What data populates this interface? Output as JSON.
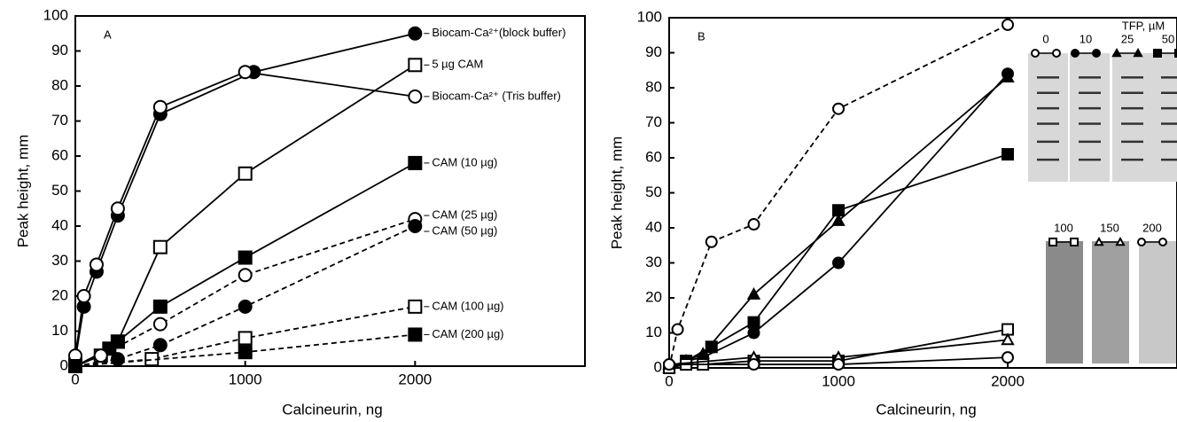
{
  "chart_data": [
    {
      "type": "line",
      "annotation": "A",
      "xlabel": "Calcineurin, ng",
      "ylabel": "Peak height, mm",
      "xlim": [
        0,
        3000
      ],
      "ylim": [
        0,
        100
      ],
      "xticks": [
        0,
        1000,
        2000
      ],
      "yticks": [
        0,
        10,
        20,
        30,
        40,
        50,
        60,
        70,
        80,
        90,
        100
      ],
      "series": [
        {
          "name": "Biocam-Ca²⁺(block buffer)",
          "color": "#000000",
          "marker": "circle",
          "filled": true,
          "dashed": false,
          "x": [
            0,
            50,
            125,
            250,
            500,
            1050,
            2000
          ],
          "values": [
            2,
            17,
            27,
            43,
            72,
            84,
            95
          ]
        },
        {
          "name": "5 µg CAM",
          "color": "#000000",
          "marker": "square",
          "filled": false,
          "dashed": false,
          "x": [
            0,
            150,
            250,
            500,
            1000,
            2000
          ],
          "values": [
            0,
            3,
            7,
            34,
            55,
            86
          ]
        },
        {
          "name": "Biocam-Ca²⁺ (Tris buffer)",
          "color": "#000000",
          "marker": "circle",
          "filled": false,
          "dashed": false,
          "x": [
            0,
            50,
            125,
            250,
            500,
            1000,
            2000
          ],
          "values": [
            3,
            20,
            29,
            45,
            74,
            84,
            77
          ]
        },
        {
          "name": "CAM (10 µg)",
          "color": "#000000",
          "marker": "square",
          "filled": true,
          "dashed": false,
          "x": [
            0,
            200,
            250,
            500,
            1000,
            2000
          ],
          "values": [
            0,
            5,
            7,
            17,
            31,
            58
          ]
        },
        {
          "name": "CAM (25 µg)",
          "color": "#000000",
          "marker": "circle",
          "filled": false,
          "dashed": true,
          "x": [
            0,
            150,
            500,
            1000,
            2000
          ],
          "values": [
            0,
            3,
            12,
            26,
            42
          ]
        },
        {
          "name": "CAM (50 µg)",
          "color": "#000000",
          "marker": "circle",
          "filled": true,
          "dashed": true,
          "x": [
            0,
            250,
            500,
            1000,
            2000
          ],
          "values": [
            0,
            2,
            6,
            17,
            40
          ]
        },
        {
          "name": "CAM (100 µg)",
          "color": "#000000",
          "marker": "square",
          "filled": false,
          "dashed": true,
          "x": [
            0,
            450,
            1000,
            2000
          ],
          "values": [
            0,
            2,
            8,
            17
          ]
        },
        {
          "name": "CAM (200 µg)",
          "color": "#000000",
          "marker": "square",
          "filled": true,
          "dashed": true,
          "x": [
            0,
            1000,
            2000
          ],
          "values": [
            0,
            4,
            9
          ]
        }
      ]
    },
    {
      "type": "line",
      "annotation": "B",
      "xlabel": "Calcineurin, ng",
      "ylabel": "Peak height, mm",
      "legend_title": "TFP, µM",
      "xlim": [
        0,
        3000
      ],
      "ylim": [
        0,
        100
      ],
      "xticks": [
        0,
        1000,
        2000
      ],
      "yticks": [
        0,
        10,
        20,
        30,
        40,
        50,
        60,
        70,
        80,
        90,
        100
      ],
      "series": [
        {
          "name": "0",
          "color": "#000000",
          "marker": "circle",
          "filled": false,
          "dashed": true,
          "x": [
            0,
            50,
            250,
            500,
            1000,
            2000
          ],
          "values": [
            0,
            11,
            36,
            41,
            74,
            98
          ]
        },
        {
          "name": "10",
          "color": "#000000",
          "marker": "circle",
          "filled": true,
          "dashed": false,
          "x": [
            0,
            100,
            200,
            500,
            1000,
            2000
          ],
          "values": [
            0,
            2,
            3,
            10,
            30,
            84
          ]
        },
        {
          "name": "25",
          "color": "#000000",
          "marker": "triangle",
          "filled": true,
          "dashed": false,
          "x": [
            0,
            100,
            200,
            500,
            1000,
            2000
          ],
          "values": [
            0,
            2,
            4,
            21,
            42,
            83
          ]
        },
        {
          "name": "50",
          "color": "#000000",
          "marker": "square",
          "filled": true,
          "dashed": false,
          "x": [
            0,
            100,
            250,
            500,
            1000,
            2000
          ],
          "values": [
            0,
            2,
            6,
            13,
            45,
            61
          ]
        },
        {
          "name": "100",
          "color": "#000000",
          "marker": "square",
          "filled": false,
          "dashed": false,
          "x": [
            0,
            100,
            200,
            500,
            1000,
            2000
          ],
          "values": [
            0,
            1,
            1,
            2,
            2,
            11
          ]
        },
        {
          "name": "150",
          "color": "#000000",
          "marker": "triangle",
          "filled": false,
          "dashed": false,
          "x": [
            0,
            500,
            1000,
            2000
          ],
          "values": [
            1,
            3,
            3,
            8
          ]
        },
        {
          "name": "200",
          "color": "#000000",
          "marker": "circle",
          "filled": false,
          "dashed": false,
          "x": [
            0,
            500,
            1000,
            2000
          ],
          "values": [
            1,
            1,
            1,
            3
          ]
        }
      ]
    }
  ]
}
